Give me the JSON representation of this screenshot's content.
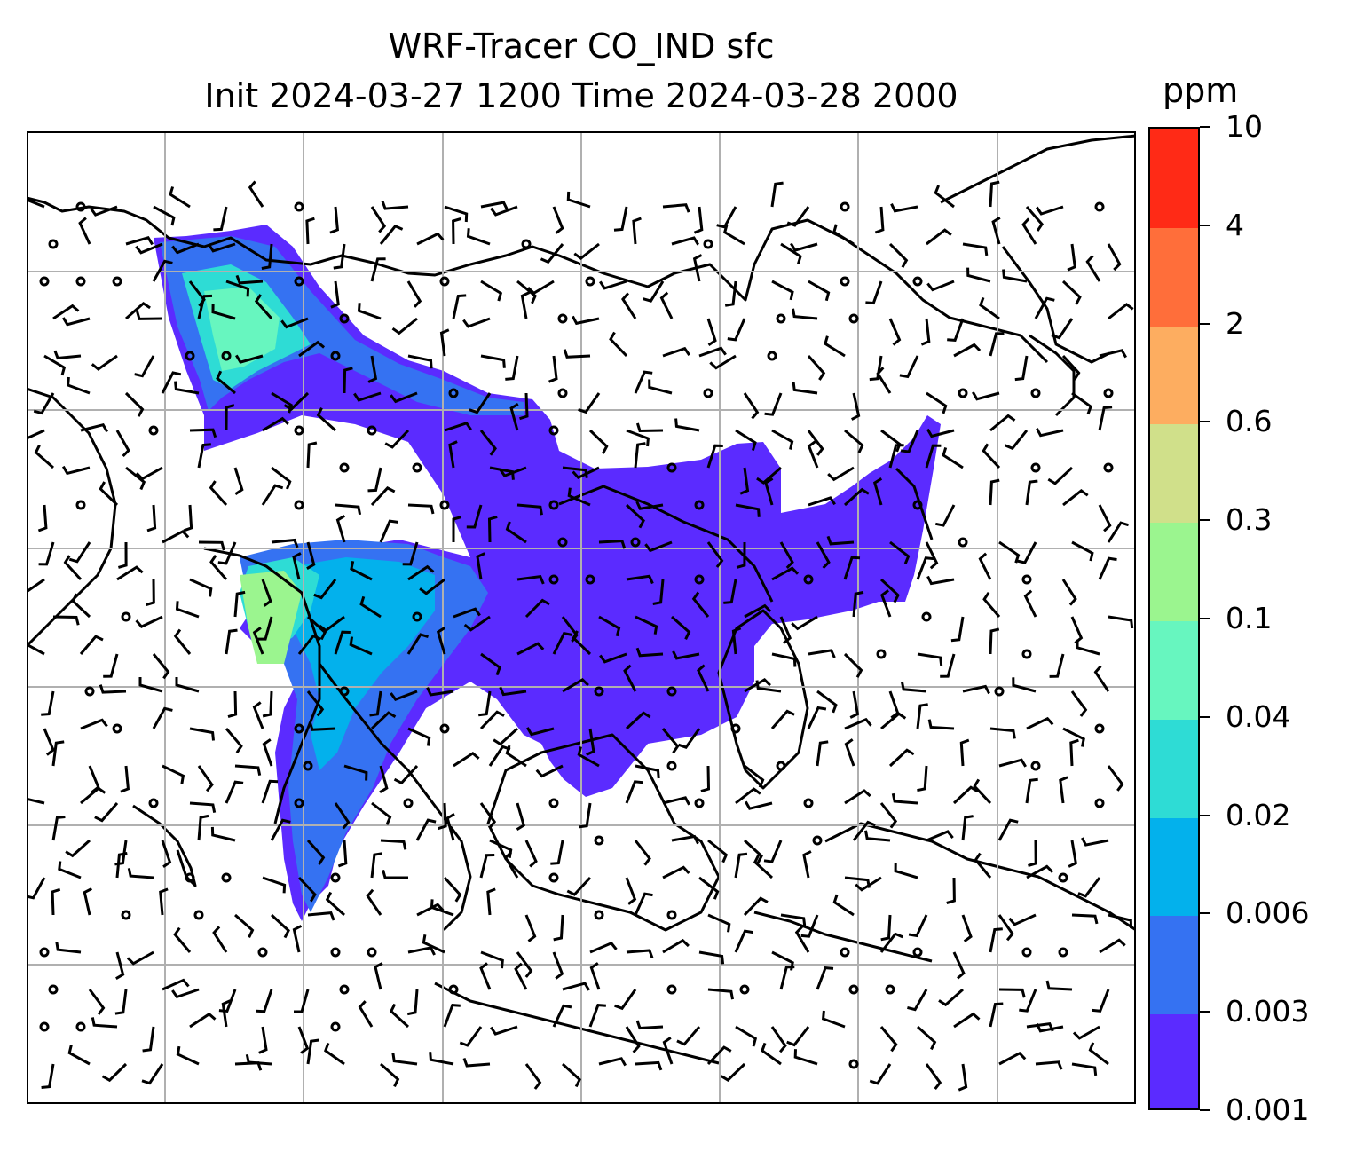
{
  "title": {
    "line1": "WRF-Tracer CO_IND sfc",
    "line2": "Init 2024-03-27 1200 Time 2024-03-28 2000"
  },
  "colorbar": {
    "unit": "ppm",
    "levels": [
      "0.001",
      "0.003",
      "0.006",
      "0.02",
      "0.04",
      "0.1",
      "0.3",
      "0.6",
      "2",
      "4",
      "10"
    ],
    "colors": [
      "#5b2bff",
      "#3572f2",
      "#03b1ec",
      "#2edcd5",
      "#67f6bf",
      "#9bf58f",
      "#d0e08a",
      "#fdad60",
      "#ff6e3a",
      "#ff2a16"
    ]
  },
  "map": {
    "gridlines": true,
    "grid_color": "#b0b0b0",
    "coastline_color": "#000000",
    "wind_barbs": true
  }
}
